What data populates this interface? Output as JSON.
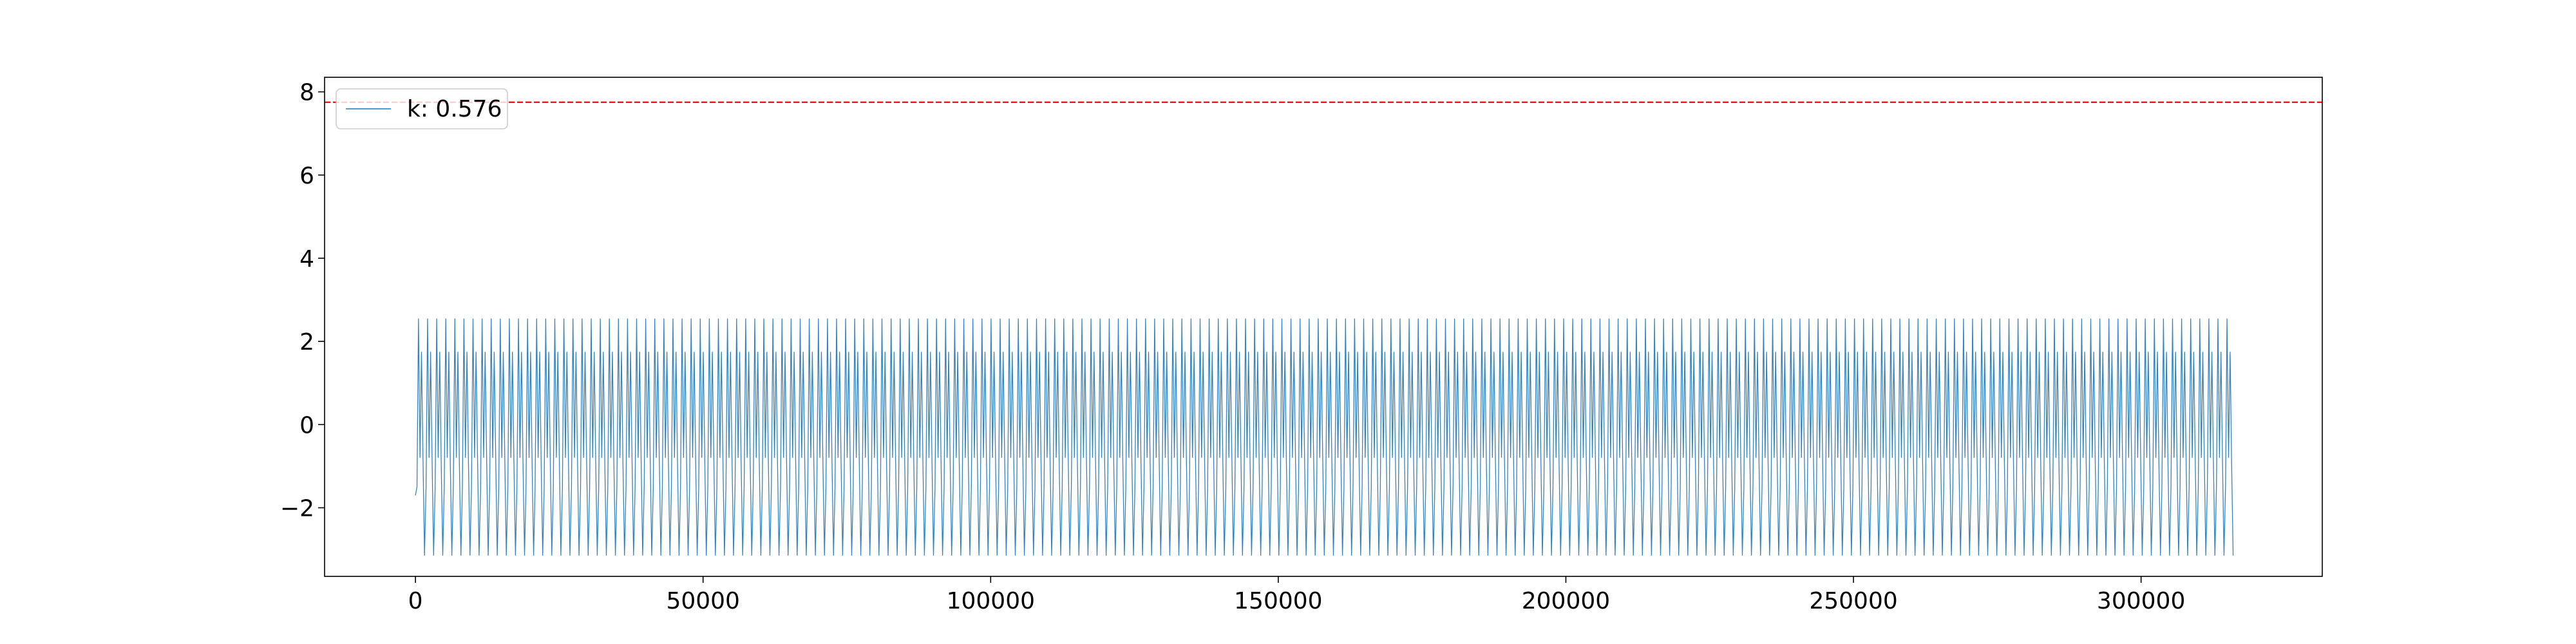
{
  "chart_data": {
    "type": "line",
    "title": "",
    "xlabel": "",
    "ylabel": "",
    "xlim": [
      -15800,
      331500
    ],
    "ylim": [
      -3.65,
      8.35
    ],
    "x_ticks": [
      0,
      50000,
      100000,
      150000,
      200000,
      250000,
      300000
    ],
    "x_tick_labels": [
      "0",
      "50000",
      "100000",
      "150000",
      "200000",
      "250000",
      "300000"
    ],
    "y_ticks": [
      -2,
      0,
      2,
      4,
      6,
      8
    ],
    "y_tick_labels": [
      "−2",
      "0",
      "2",
      "4",
      "6",
      "8"
    ],
    "grid": false,
    "legend": {
      "placement": "upper-left",
      "entries": [
        "k: 0.576"
      ]
    },
    "series": [
      {
        "name": "k: 0.576",
        "color": "#1f77b4",
        "style": "thin periodic oscillation",
        "x_range": [
          0,
          316000
        ],
        "cycles": 200,
        "pattern_per_cycle": [
          -1.5,
          2.55,
          -0.8,
          1.75,
          -0.9,
          -3.15
        ],
        "baseline_start": -1.7
      }
    ],
    "reference_lines": [
      {
        "orientation": "horizontal",
        "y": 7.75,
        "color": "#ff0000",
        "style": "dashed"
      }
    ]
  }
}
